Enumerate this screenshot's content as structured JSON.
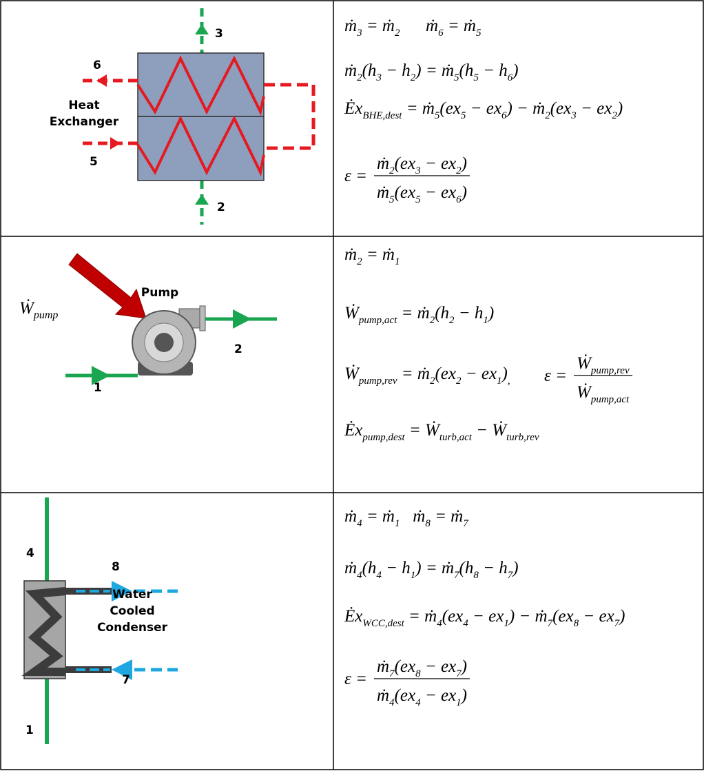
{
  "rows": [
    {
      "diagram": {
        "labels": [
          "3",
          "6",
          "Heat",
          "Exchanger",
          "5",
          "2"
        ]
      },
      "equations": [
        {
          "runs": [
            "ṁ",
            {
              "sub": "3"
            },
            " = ṁ",
            {
              "sub": "2"
            },
            "      ṁ",
            {
              "sub": "6"
            },
            " = ṁ",
            {
              "sub": "5"
            }
          ]
        },
        {
          "runs": [
            "ṁ",
            {
              "sub": "2"
            },
            "(h",
            {
              "sub": "3"
            },
            " − h",
            {
              "sub": "2"
            },
            ") = ṁ",
            {
              "sub": "5"
            },
            "(h",
            {
              "sub": "5"
            },
            " − h",
            {
              "sub": "6"
            },
            ")"
          ]
        },
        {
          "runs": [
            "Ėx",
            {
              "sub": "BHE,dest"
            },
            " = ṁ",
            {
              "sub": "5"
            },
            "(ex",
            {
              "sub": "5"
            },
            " − ex",
            {
              "sub": "6"
            },
            ") − ṁ",
            {
              "sub": "2"
            },
            "(ex",
            {
              "sub": "3"
            },
            " − ex",
            {
              "sub": "2"
            },
            ")"
          ]
        },
        {
          "lhs": [
            "ε ="
          ],
          "num": [
            "ṁ",
            {
              "sub": "2"
            },
            "(ex",
            {
              "sub": "3"
            },
            " − ex",
            {
              "sub": "2"
            },
            ")"
          ],
          "den": [
            "ṁ",
            {
              "sub": "5"
            },
            "(ex",
            {
              "sub": "5"
            },
            " − ex",
            {
              "sub": "6"
            },
            ")"
          ]
        }
      ]
    },
    {
      "diagram": {
        "labels": [
          "Pump",
          "2",
          "1"
        ],
        "input": [
          "Ẇ",
          {
            "sub": "pump"
          }
        ]
      },
      "equations": [
        {
          "runs": [
            "ṁ",
            {
              "sub": "2"
            },
            " = ṁ",
            {
              "sub": "1"
            }
          ]
        },
        {
          "runs": [
            "Ẇ",
            {
              "sub": "pump,act"
            },
            " = ṁ",
            {
              "sub": "2"
            },
            "(h",
            {
              "sub": "2"
            },
            " − h",
            {
              "sub": "1"
            },
            ")"
          ]
        },
        {
          "runs": [
            "Ẇ",
            {
              "sub": "pump,rev"
            },
            " = ṁ",
            {
              "sub": "2"
            },
            "(ex",
            {
              "sub": "2"
            },
            " − ex",
            {
              "sub": "1"
            },
            ")",
            {
              "sub": ","
            }
          ]
        },
        {
          "lhs": [
            "ε ="
          ],
          "num": [
            "Ẇ",
            {
              "sub": "pump,rev"
            }
          ],
          "den": [
            "Ẇ",
            {
              "sub": "pump,act"
            }
          ]
        },
        {
          "runs": [
            "Ėx",
            {
              "sub": "pump,dest"
            },
            " = Ẇ",
            {
              "sub": "turb,act"
            },
            " − Ẇ",
            {
              "sub": "turb,rev"
            }
          ]
        }
      ]
    },
    {
      "diagram": {
        "labels": [
          "4",
          "8",
          "Water",
          "Cooled",
          "Condenser",
          "7",
          "1"
        ]
      },
      "equations": [
        {
          "runs": [
            "ṁ",
            {
              "sub": "4"
            },
            " = ṁ",
            {
              "sub": "1"
            },
            "   ṁ",
            {
              "sub": "8"
            },
            " = ṁ",
            {
              "sub": "7"
            }
          ]
        },
        {
          "runs": [
            "ṁ",
            {
              "sub": "4"
            },
            "(h",
            {
              "sub": "4"
            },
            " − h",
            {
              "sub": "1"
            },
            ") = ṁ",
            {
              "sub": "7"
            },
            "(h",
            {
              "sub": "8"
            },
            " − h",
            {
              "sub": "7"
            },
            ")"
          ]
        },
        {
          "runs": [
            "Ėx",
            {
              "sub": "WCC,dest"
            },
            " = ṁ",
            {
              "sub": "4"
            },
            "(ex",
            {
              "sub": "4"
            },
            " − ex",
            {
              "sub": "1"
            },
            ") − ṁ",
            {
              "sub": "7"
            },
            "(ex",
            {
              "sub": "8"
            },
            " − ex",
            {
              "sub": "7"
            },
            ")"
          ]
        },
        {
          "lhs": [
            "ε ="
          ],
          "num": [
            "ṁ",
            {
              "sub": "7"
            },
            "(ex",
            {
              "sub": "8"
            },
            " − ex",
            {
              "sub": "7"
            },
            ")"
          ],
          "den": [
            "ṁ",
            {
              "sub": "4"
            },
            "(ex",
            {
              "sub": "4"
            },
            " − ex",
            {
              "sub": "1"
            },
            ")"
          ]
        }
      ]
    }
  ]
}
